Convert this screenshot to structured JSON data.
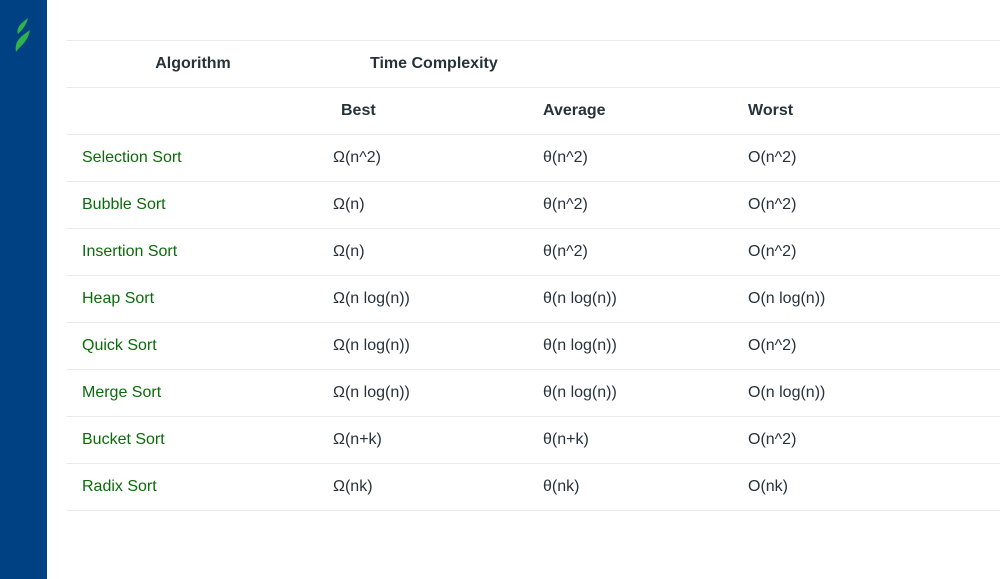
{
  "brand": {
    "logo_icon": "gfg-leaf-logo",
    "sidebar_color": "#004184",
    "logo_color": "#2fb24c"
  },
  "table": {
    "header": {
      "algorithm": "Algorithm",
      "time_complexity": "Time Complexity",
      "best": "Best",
      "average": "Average",
      "worst": "Worst"
    },
    "rows": [
      {
        "name": "Selection Sort",
        "best": "Ω(n^2)",
        "average": "θ(n^2)",
        "worst": "O(n^2)"
      },
      {
        "name": "Bubble Sort",
        "best": "Ω(n)",
        "average": "θ(n^2)",
        "worst": "O(n^2)"
      },
      {
        "name": "Insertion Sort",
        "best": "Ω(n)",
        "average": "θ(n^2)",
        "worst": "O(n^2)"
      },
      {
        "name": "Heap Sort",
        "best": "Ω(n log(n))",
        "average": "θ(n log(n))",
        "worst": "O(n log(n))"
      },
      {
        "name": "Quick Sort",
        "best": "Ω(n log(n))",
        "average": "θ(n log(n))",
        "worst": "O(n^2)"
      },
      {
        "name": "Merge Sort",
        "best": "Ω(n log(n))",
        "average": "θ(n log(n))",
        "worst": "O(n log(n))"
      },
      {
        "name": "Bucket Sort",
        "best": "Ω(n+k)",
        "average": "θ(n+k)",
        "worst": "O(n^2)"
      },
      {
        "name": "Radix Sort",
        "best": "Ω(nk)",
        "average": "θ(nk)",
        "worst": "O(nk)"
      }
    ]
  }
}
